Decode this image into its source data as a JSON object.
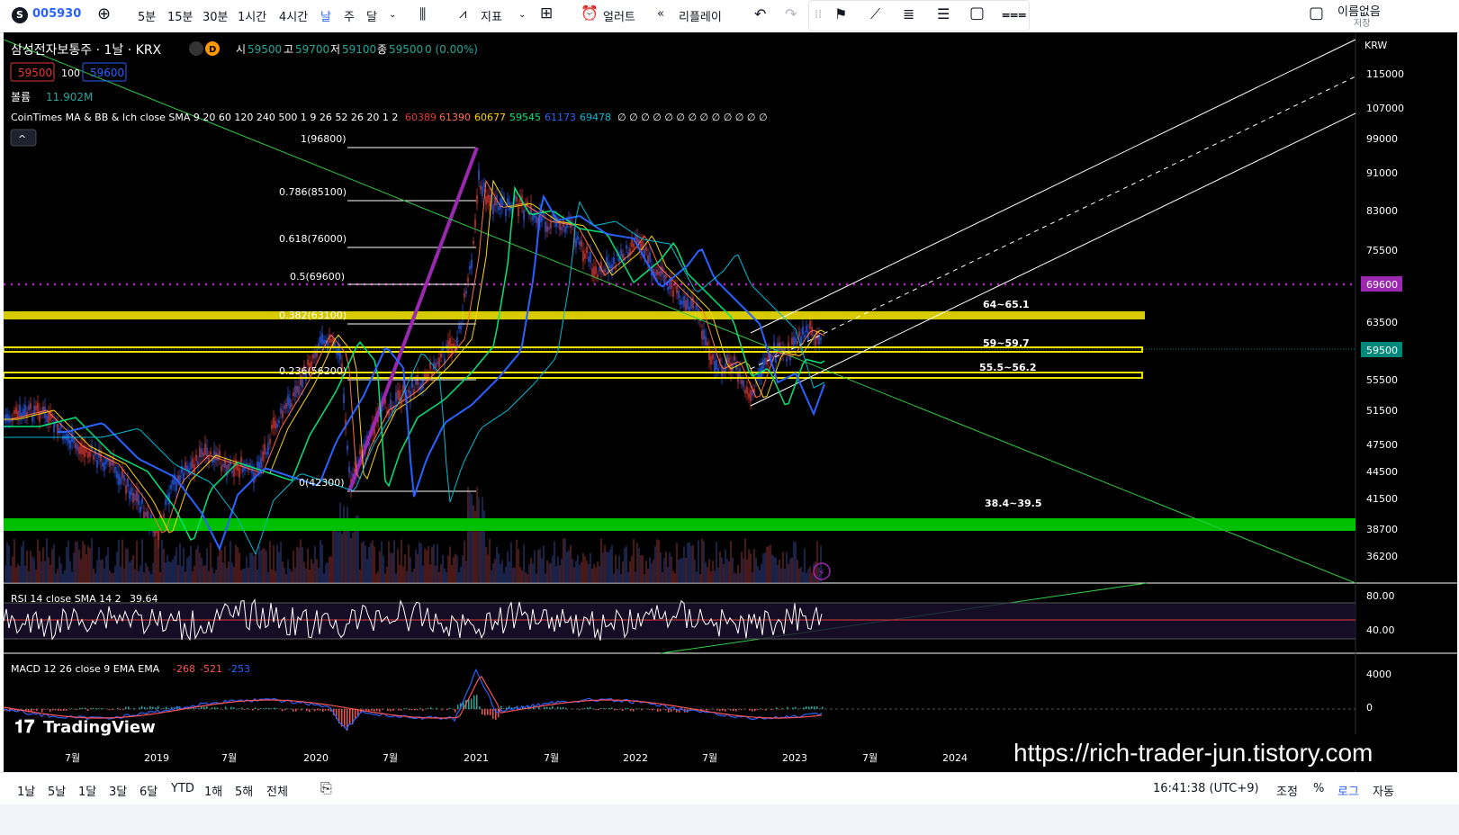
{
  "toolbar": {
    "symbol_code": "005930",
    "symbol_badge": "S",
    "intervals": [
      "5분",
      "15분",
      "30분",
      "1시간",
      "4시간",
      "날",
      "주",
      "달"
    ],
    "indicators_label": "지표",
    "alert_label": "얼러트",
    "replay_label": "리플레이",
    "layout_name": "이름없음",
    "save_label": "저장"
  },
  "legend": {
    "title": "삼성전자보통주 · 1날 · KRX",
    "d_badge": "D",
    "o_label": "시",
    "o_value": "59500",
    "h_label": "고",
    "h_value": "59700",
    "l_label": "저",
    "l_value": "59100",
    "c_label": "종",
    "c_value": "59500",
    "change": "0 (0.00%)",
    "bid": "59500",
    "spread": "100",
    "ask": "59600",
    "volume_label": "볼륨",
    "volume_value": "11.902M",
    "indicator_name": "CoinTimes MA & BB & Ich close SMA 9 20 60 120 240 500 1 9 26 52 26 20 1 2",
    "indicator_values": [
      "60389",
      "61390",
      "60677",
      "59545",
      "61173",
      "69478"
    ],
    "indicator_zeros": "∅ ∅ ∅ ∅ ∅ ∅ ∅ ∅ ∅ ∅ ∅ ∅ ∅"
  },
  "fib_labels": [
    "1(96800)",
    "0.786(85100)",
    "0.618(76000)",
    "0.5(69600)",
    "0.382(63100)",
    "0.236(56200)",
    "0(42300)"
  ],
  "zone_labels": [
    "64~65.1",
    "59~59.7",
    "55.5~56.2",
    "38.4~39.5"
  ],
  "price_axis": {
    "currency": "KRW",
    "ticks": [
      "115000",
      "107000",
      "99000",
      "91000",
      "83000",
      "75500",
      "63500",
      "55500",
      "51500",
      "47500",
      "44500",
      "41500",
      "38700",
      "36200"
    ],
    "current_price": "59500",
    "marked_price": "69600"
  },
  "rsi": {
    "label": "RSI 14 close SMA 14 2",
    "value": "39.64",
    "ticks": [
      "80.00",
      "40.00"
    ]
  },
  "macd": {
    "label": "MACD 12 26 close 9 EMA EMA",
    "values": [
      "-268",
      "-521",
      "-253"
    ],
    "ticks": [
      "4000",
      "0"
    ]
  },
  "time_axis": [
    "7월",
    "2019",
    "7월",
    "2020",
    "7월",
    "2021",
    "7월",
    "2022",
    "7월",
    "2023",
    "7월",
    "2024"
  ],
  "watermark": "TradingView",
  "url_overlay": "https://rich-trader-jun.tistory.com",
  "bottom": {
    "ranges": [
      "1날",
      "5날",
      "1달",
      "3달",
      "6달",
      "YTD",
      "1해",
      "5해",
      "전체"
    ],
    "clock": "16:41:38 (UTC+9)",
    "adjust_label": "조정",
    "percent_label": "%",
    "log_label": "로그",
    "auto_label": "자동"
  },
  "colors": {
    "background": "#000000",
    "fib_line": "#7b1fa2",
    "zone_yellow": "#f0e000",
    "zone_green": "#00c000",
    "ma_blue": "#2962ff",
    "ma_green": "#00e676",
    "ma_yellow": "#ffd600",
    "ma_cyan": "#00bcd4",
    "log_active": "#2962ff"
  }
}
